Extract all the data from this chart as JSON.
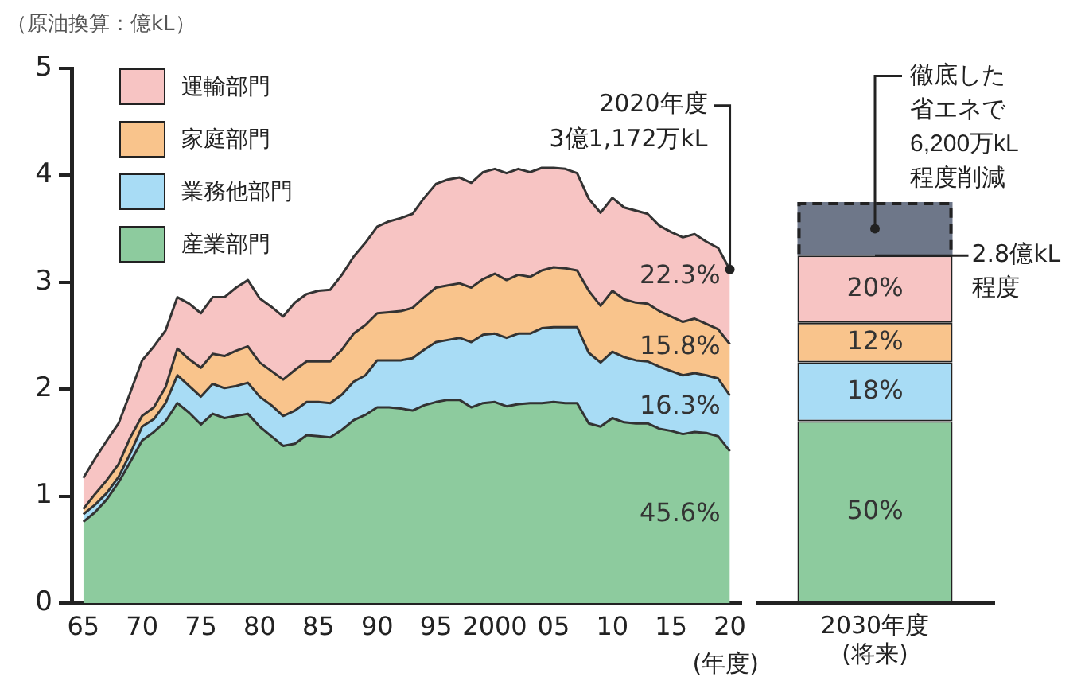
{
  "chart_data": [
    {
      "type": "area",
      "ylabel": "（原油換算：億kL）",
      "xlabel": "(年度)",
      "stacked": true,
      "legend": "top left",
      "x": [
        1965,
        1966,
        1967,
        1968,
        1969,
        1970,
        1971,
        1972,
        1973,
        1974,
        1975,
        1976,
        1977,
        1978,
        1979,
        1980,
        1981,
        1982,
        1983,
        1984,
        1985,
        1986,
        1987,
        1988,
        1989,
        1990,
        1991,
        1992,
        1993,
        1994,
        1995,
        1996,
        1997,
        1998,
        1999,
        2000,
        2001,
        2002,
        2003,
        2004,
        2005,
        2006,
        2007,
        2008,
        2009,
        2010,
        2011,
        2012,
        2013,
        2014,
        2015,
        2016,
        2017,
        2018,
        2019,
        2020
      ],
      "series": [
        {
          "name": "産業部門",
          "color": "#8dcb9e",
          "values": [
            0.76,
            0.85,
            0.97,
            1.13,
            1.32,
            1.52,
            1.6,
            1.7,
            1.87,
            1.78,
            1.67,
            1.77,
            1.73,
            1.75,
            1.77,
            1.65,
            1.56,
            1.47,
            1.49,
            1.57,
            1.56,
            1.55,
            1.62,
            1.71,
            1.76,
            1.83,
            1.83,
            1.82,
            1.8,
            1.85,
            1.88,
            1.9,
            1.9,
            1.83,
            1.87,
            1.88,
            1.84,
            1.86,
            1.87,
            1.87,
            1.88,
            1.87,
            1.87,
            1.68,
            1.65,
            1.73,
            1.69,
            1.68,
            1.68,
            1.63,
            1.61,
            1.58,
            1.6,
            1.59,
            1.56,
            1.42
          ]
        },
        {
          "name": "業務他部門",
          "color": "#a8dcf5",
          "values": [
            0.07,
            0.07,
            0.06,
            0.05,
            0.08,
            0.13,
            0.12,
            0.17,
            0.26,
            0.25,
            0.26,
            0.28,
            0.28,
            0.28,
            0.29,
            0.28,
            0.29,
            0.28,
            0.31,
            0.31,
            0.32,
            0.32,
            0.33,
            0.36,
            0.37,
            0.44,
            0.44,
            0.45,
            0.49,
            0.52,
            0.56,
            0.56,
            0.58,
            0.61,
            0.64,
            0.64,
            0.64,
            0.66,
            0.65,
            0.7,
            0.7,
            0.71,
            0.71,
            0.66,
            0.6,
            0.62,
            0.61,
            0.59,
            0.58,
            0.58,
            0.56,
            0.55,
            0.55,
            0.54,
            0.54,
            0.52
          ]
        },
        {
          "name": "家庭部門",
          "color": "#f9c48c",
          "values": [
            0.05,
            0.1,
            0.12,
            0.12,
            0.15,
            0.1,
            0.11,
            0.15,
            0.25,
            0.25,
            0.27,
            0.28,
            0.3,
            0.33,
            0.34,
            0.32,
            0.32,
            0.34,
            0.38,
            0.38,
            0.38,
            0.39,
            0.42,
            0.45,
            0.47,
            0.44,
            0.45,
            0.46,
            0.47,
            0.49,
            0.51,
            0.51,
            0.51,
            0.51,
            0.52,
            0.56,
            0.54,
            0.55,
            0.53,
            0.54,
            0.56,
            0.55,
            0.53,
            0.58,
            0.53,
            0.57,
            0.54,
            0.54,
            0.54,
            0.52,
            0.51,
            0.5,
            0.51,
            0.48,
            0.46,
            0.48
          ]
        },
        {
          "name": "運輸部門",
          "color": "#f7c4c3",
          "values": [
            0.29,
            0.33,
            0.37,
            0.38,
            0.42,
            0.52,
            0.57,
            0.53,
            0.48,
            0.52,
            0.51,
            0.53,
            0.55,
            0.59,
            0.62,
            0.6,
            0.6,
            0.59,
            0.63,
            0.63,
            0.66,
            0.67,
            0.7,
            0.72,
            0.77,
            0.81,
            0.85,
            0.87,
            0.88,
            0.93,
            0.97,
            0.99,
            0.99,
            0.98,
            1.0,
            0.98,
            1.0,
            0.99,
            0.98,
            0.96,
            0.93,
            0.93,
            0.91,
            0.86,
            0.87,
            0.87,
            0.86,
            0.86,
            0.84,
            0.8,
            0.79,
            0.79,
            0.79,
            0.77,
            0.76,
            0.7
          ]
        }
      ],
      "xlim": [
        1964,
        2021
      ],
      "xticks": [
        {
          "value": 1965,
          "label": "65"
        },
        {
          "value": 1970,
          "label": "70"
        },
        {
          "value": 1975,
          "label": "75"
        },
        {
          "value": 1980,
          "label": "80"
        },
        {
          "value": 1985,
          "label": "85"
        },
        {
          "value": 1990,
          "label": "90"
        },
        {
          "value": 1995,
          "label": "95"
        },
        2000,
        {
          "value": 2005,
          "label": "05"
        },
        {
          "value": 2010,
          "label": "10"
        },
        {
          "value": 2015,
          "label": "15"
        },
        {
          "value": 2020,
          "label": "20"
        }
      ],
      "ylim": [
        0,
        5
      ],
      "yticks": [
        0,
        1,
        2,
        3,
        4,
        5
      ],
      "annotations": [
        {
          "text": "2020年度\n3億1,172万kL",
          "x": 2020,
          "y": 3.12
        },
        {
          "text": "22.3%",
          "x": 2020,
          "y": 3.05
        },
        {
          "text": "15.8%",
          "x": 2020,
          "y": 2.39
        },
        {
          "text": "16.3%",
          "x": 2020,
          "y": 1.83
        },
        {
          "text": "45.6%",
          "x": 2020,
          "y": 0.83
        }
      ]
    },
    {
      "type": "bar",
      "stacked": true,
      "tick_labels": "x",
      "categories": [
        "2030年度\n(将来)"
      ],
      "ylim": [
        0,
        5
      ],
      "series": [
        {
          "color": "#8dcb9e",
          "values": [
            1.7
          ]
        },
        {
          "color": "#a8dcf5",
          "values": [
            0.55
          ]
        },
        {
          "color": "#f9c48c",
          "values": [
            0.37
          ]
        },
        {
          "color": "#f7c4c3",
          "values": [
            0.63
          ]
        },
        {
          "color": "#6e7789",
          "values": [
            0.5
          ],
          "line_style": "dashed"
        }
      ],
      "annotations": [
        {
          "text": "徹底した省エネで6,200万kL程度削減",
          "x": "2030年度\n(将来)",
          "y": 3.5
        },
        {
          "text": "2.8億kL\n程度",
          "x": "2030年度\n(将来)",
          "y": 3.25
        },
        "20%",
        "12%",
        "18%",
        "50%"
      ]
    }
  ]
}
